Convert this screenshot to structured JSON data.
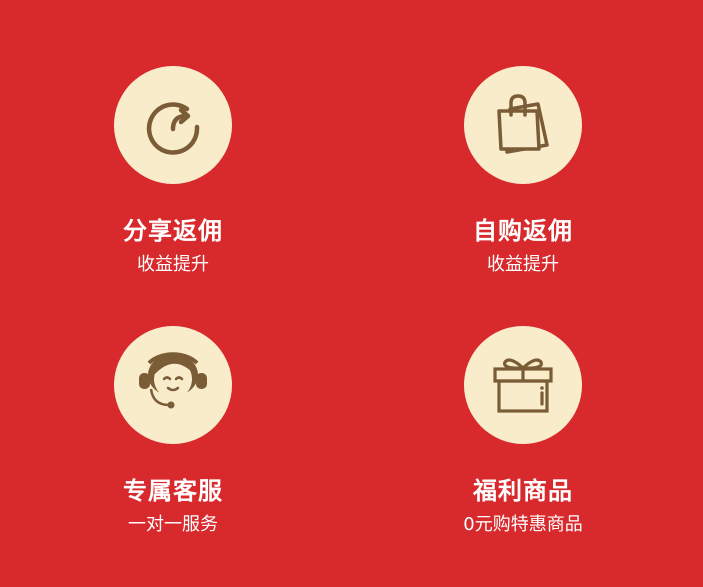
{
  "features": [
    {
      "title": "分享返佣",
      "subtitle": "收益提升",
      "icon": "share-icon"
    },
    {
      "title": "自购返佣",
      "subtitle": "收益提升",
      "icon": "shopping-bag-icon"
    },
    {
      "title": "专属客服",
      "subtitle": "一对一服务",
      "icon": "customer-service-icon"
    },
    {
      "title": "福利商品",
      "subtitle": "0元购特惠商品",
      "icon": "gift-icon"
    }
  ],
  "colors": {
    "background": "#d8292c",
    "circle": "#f9ecca",
    "icon": "#7a5c36",
    "text": "#ffffff"
  }
}
